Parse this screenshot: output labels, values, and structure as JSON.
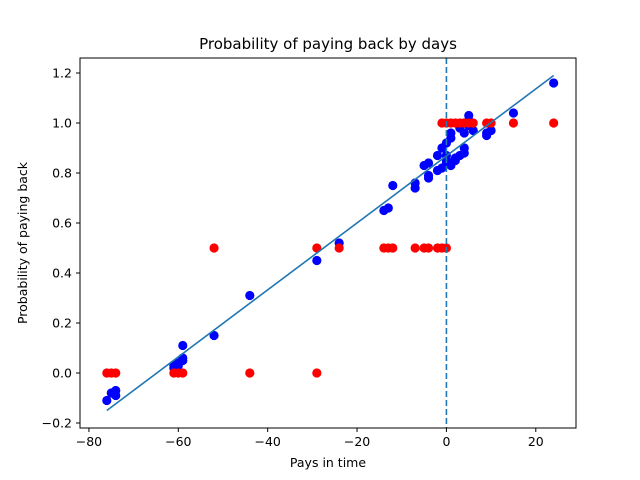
{
  "chart_data": {
    "type": "scatter",
    "title": "Probability of paying back by days",
    "xlabel": "Pays in time",
    "ylabel": "Probability of paying back",
    "xlim": [
      -82,
      29
    ],
    "ylim": [
      -0.22,
      1.26
    ],
    "xticks": [
      -80,
      -60,
      -40,
      -20,
      0,
      20
    ],
    "xtick_labels": [
      "−80",
      "−60",
      "−40",
      "−20",
      "0",
      "20"
    ],
    "yticks": [
      -0.2,
      0.0,
      0.2,
      0.4,
      0.6,
      0.8,
      1.0,
      1.2
    ],
    "ytick_labels": [
      "−0.2",
      "0.0",
      "0.2",
      "0.4",
      "0.6",
      "0.8",
      "1.0",
      "1.2"
    ],
    "grid": false,
    "vline": {
      "x": 0,
      "color": "#1f77b4",
      "style": "dashed"
    },
    "colors": {
      "predicted": "#0000ff",
      "actual": "#ff0000",
      "fit": "#1f77b4",
      "axes": "#000000"
    },
    "series": [
      {
        "role": "predicted",
        "color": "#0000ff",
        "points": [
          [
            -76,
            -0.11
          ],
          [
            -75,
            -0.08
          ],
          [
            -74,
            -0.09
          ],
          [
            -74,
            -0.07
          ],
          [
            -61,
            0.02
          ],
          [
            -61,
            0.03
          ],
          [
            -60,
            0.04
          ],
          [
            -60,
            0.03
          ],
          [
            -59,
            0.05
          ],
          [
            -59,
            0.06
          ],
          [
            -59,
            0.11
          ],
          [
            -52,
            0.15
          ],
          [
            -44,
            0.31
          ],
          [
            -29,
            0.45
          ],
          [
            -24,
            0.52
          ],
          [
            -14,
            0.65
          ],
          [
            -13,
            0.66
          ],
          [
            -12,
            0.75
          ],
          [
            -7,
            0.74
          ],
          [
            -7,
            0.76
          ],
          [
            -5,
            0.83
          ],
          [
            -4,
            0.84
          ],
          [
            -4,
            0.78
          ],
          [
            -4,
            0.79
          ],
          [
            -2,
            0.81
          ],
          [
            -2,
            0.87
          ],
          [
            -1,
            0.82
          ],
          [
            -1,
            0.9
          ],
          [
            0,
            0.92
          ],
          [
            0,
            0.87
          ],
          [
            0,
            0.84
          ],
          [
            0,
            0.85
          ],
          [
            1,
            0.94
          ],
          [
            1,
            0.96
          ],
          [
            1,
            0.83
          ],
          [
            1,
            0.84
          ],
          [
            2,
            0.85
          ],
          [
            2,
            0.86
          ],
          [
            3,
            0.87
          ],
          [
            3,
            0.98
          ],
          [
            4,
            0.88
          ],
          [
            4,
            0.9
          ],
          [
            4,
            0.96
          ],
          [
            4,
            1.0
          ],
          [
            5,
            1.01
          ],
          [
            5,
            1.03
          ],
          [
            5,
            0.99
          ],
          [
            6,
            0.97
          ],
          [
            9,
            0.95
          ],
          [
            9,
            0.96
          ],
          [
            10,
            0.97
          ],
          [
            15,
            1.04
          ],
          [
            24,
            1.16
          ]
        ]
      },
      {
        "role": "actual",
        "color": "#ff0000",
        "points": [
          [
            -76,
            0.0
          ],
          [
            -75,
            0.0
          ],
          [
            -74,
            0.0
          ],
          [
            -61,
            0.0
          ],
          [
            -60,
            0.0
          ],
          [
            -59,
            0.0
          ],
          [
            -52,
            0.5
          ],
          [
            -44,
            0.0
          ],
          [
            -29,
            0.5
          ],
          [
            -29,
            0.0
          ],
          [
            -24,
            0.5
          ],
          [
            -14,
            0.5
          ],
          [
            -13,
            0.5
          ],
          [
            -12,
            0.5
          ],
          [
            -7,
            0.5
          ],
          [
            -5,
            0.5
          ],
          [
            -4,
            0.5
          ],
          [
            -2,
            0.5
          ],
          [
            -1,
            0.5
          ],
          [
            0,
            0.5
          ],
          [
            -1,
            1.0
          ],
          [
            0,
            1.0
          ],
          [
            1,
            1.0
          ],
          [
            2,
            1.0
          ],
          [
            3,
            1.0
          ],
          [
            4,
            1.0
          ],
          [
            5,
            1.0
          ],
          [
            6,
            1.0
          ],
          [
            9,
            1.0
          ],
          [
            10,
            1.0
          ],
          [
            15,
            1.0
          ],
          [
            24,
            1.0
          ]
        ]
      },
      {
        "role": "fit",
        "type": "line",
        "color": "#1f77b4",
        "x": [
          -76,
          24
        ],
        "y": [
          -0.15,
          1.19
        ]
      }
    ]
  }
}
